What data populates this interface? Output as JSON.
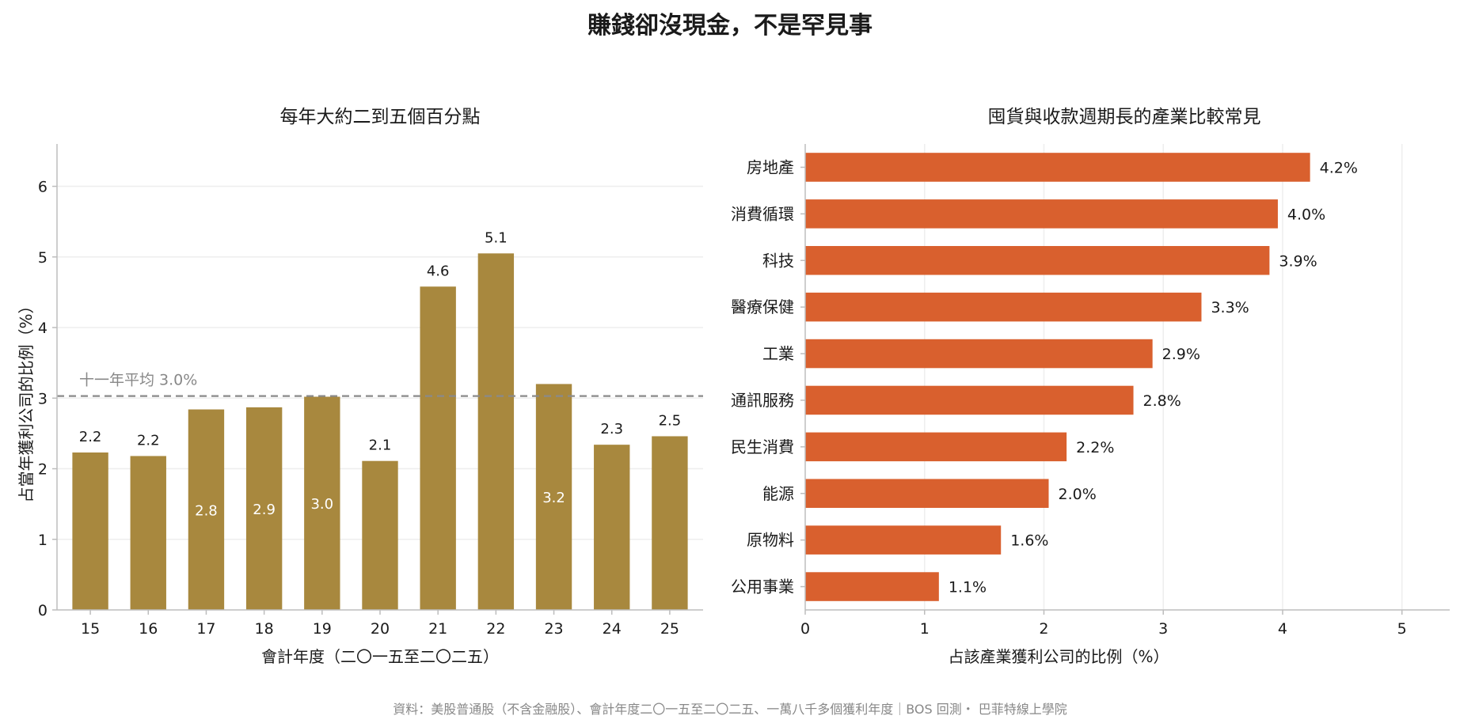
{
  "suptitle": "賺錢卻沒現金，不是罕見事",
  "footer": "資料：美股普通股（不含金融股）、會計年度二〇一五至二〇二五、一萬八千多個獲利年度｜BOS 回測・ 巴菲特線上學院",
  "colors": {
    "bar_left": "#a8883e",
    "bar_right": "#d9602e",
    "avg_line": "#8a8a8a",
    "grid": "#eeeeee",
    "axis": "#bdbdbd",
    "text": "#1a1a1a",
    "muted": "#888888"
  },
  "chart_data": [
    {
      "type": "bar",
      "title": "每年大約二到五個百分點",
      "xlabel": "會計年度（二〇一五至二〇二五）",
      "ylabel": "占當年獲利公司的比例（%）",
      "categories": [
        "15",
        "16",
        "17",
        "18",
        "19",
        "20",
        "21",
        "22",
        "23",
        "24",
        "25"
      ],
      "values": [
        2.23,
        2.18,
        2.84,
        2.87,
        3.02,
        2.11,
        4.58,
        5.05,
        3.2,
        2.34,
        2.46
      ],
      "value_labels": [
        "2.2",
        "2.2",
        "2.8",
        "2.9",
        "3.0",
        "2.1",
        "4.6",
        "5.1",
        "3.2",
        "2.3",
        "2.5"
      ],
      "label_inside": [
        false,
        false,
        true,
        true,
        true,
        false,
        false,
        false,
        true,
        false,
        false
      ],
      "ylim": [
        0,
        6.6
      ],
      "yticks": [
        "0",
        "1",
        "2",
        "3",
        "4",
        "5",
        "6"
      ],
      "reference_line": {
        "value": 3.03,
        "label": "十一年平均 3.0%"
      },
      "grid": true
    },
    {
      "type": "bar",
      "orientation": "horizontal",
      "title": "囤貨與收款週期長的產業比較常見",
      "xlabel": "占該產業獲利公司的比例（%）",
      "categories": [
        "房地產",
        "消費循環",
        "科技",
        "醫療保健",
        "工業",
        "通訊服務",
        "民生消費",
        "能源",
        "原物料",
        "公用事業"
      ],
      "values": [
        4.23,
        3.96,
        3.89,
        3.32,
        2.91,
        2.75,
        2.19,
        2.04,
        1.64,
        1.12
      ],
      "value_labels": [
        "4.2%",
        "4.0%",
        "3.9%",
        "3.3%",
        "2.9%",
        "2.8%",
        "2.2%",
        "2.0%",
        "1.6%",
        "1.1%"
      ],
      "xlim": [
        0,
        5.4
      ],
      "xticks": [
        "0",
        "1",
        "2",
        "3",
        "4",
        "5"
      ],
      "grid": true
    }
  ]
}
